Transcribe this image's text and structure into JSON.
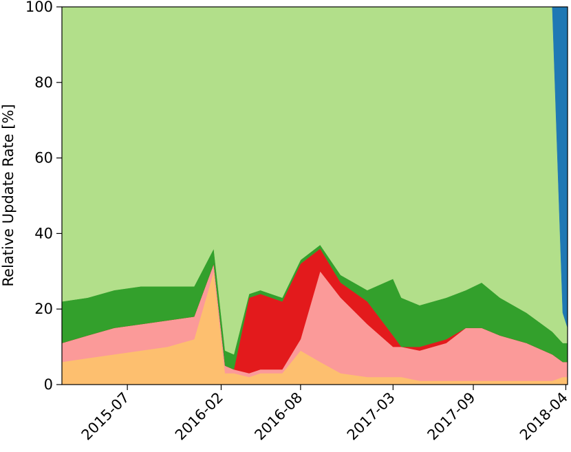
{
  "chart_data": {
    "type": "area",
    "stacked": true,
    "normalized_percent": true,
    "title": "",
    "xlabel": "",
    "ylabel": "Relative Update Rate [%]",
    "ylim": [
      0,
      100
    ],
    "xlim": [
      "2015-02-01",
      "2018-04-05"
    ],
    "y_ticks": [
      "0",
      "20",
      "40",
      "60",
      "80",
      "100"
    ],
    "x_ticks": [
      "2015-07",
      "2016-02",
      "2016-08",
      "2017-03",
      "2017-09",
      "2018-04"
    ],
    "x_tick_dates": [
      "2015-07-01",
      "2016-02-01",
      "2016-08-01",
      "2017-03-01",
      "2017-09-01",
      "2018-04-01"
    ],
    "grid": false,
    "legend": "none",
    "x": [
      "2015-02-01",
      "2015-04-01",
      "2015-06-01",
      "2015-08-01",
      "2015-10-01",
      "2015-12-01",
      "2016-01-15",
      "2016-02-10",
      "2016-03-01",
      "2016-04-05",
      "2016-05-01",
      "2016-06-20",
      "2016-08-01",
      "2016-09-15",
      "2016-11-01",
      "2017-01-01",
      "2017-03-01",
      "2017-03-20",
      "2017-05-01",
      "2017-07-01",
      "2017-08-15",
      "2017-09-20",
      "2017-11-01",
      "2018-01-01",
      "2018-03-01",
      "2018-03-25",
      "2018-04-05"
    ],
    "series": [
      {
        "color": "#fdbf6f",
        "values": [
          6,
          7,
          8,
          9,
          10,
          12,
          30,
          3,
          3,
          2,
          3,
          3,
          9,
          6,
          3,
          2,
          2,
          2,
          1,
          1,
          1,
          1,
          1,
          1,
          1,
          2,
          2
        ]
      },
      {
        "color": "#fb9a99",
        "values": [
          5,
          6,
          7,
          7,
          7,
          6,
          2,
          2,
          1,
          1,
          1,
          1,
          3,
          24,
          20,
          14,
          8,
          8,
          8,
          10,
          14,
          14,
          12,
          10,
          7,
          4,
          4
        ]
      },
      {
        "color": "#e31a1c",
        "values": [
          0,
          0,
          0,
          0,
          0,
          0,
          0,
          0,
          0,
          20,
          20,
          18,
          20,
          6,
          4,
          6,
          3,
          0,
          1,
          1,
          0,
          0,
          0,
          0,
          0,
          0,
          0
        ]
      },
      {
        "color": "#33a02c",
        "values": [
          11,
          10,
          10,
          10,
          9,
          8,
          4,
          4,
          4,
          1,
          1,
          1,
          1,
          1,
          2,
          3,
          15,
          13,
          11,
          11,
          10,
          12,
          10,
          8,
          6,
          5,
          5
        ]
      },
      {
        "color": "#b2df8a",
        "values": [
          78,
          77,
          75,
          74,
          74,
          74,
          64,
          91,
          92,
          76,
          75,
          77,
          67,
          63,
          71,
          75,
          72,
          77,
          79,
          77,
          75,
          73,
          77,
          81,
          86,
          8,
          4
        ]
      },
      {
        "color": "#1f78b4",
        "values": [
          0,
          0,
          0,
          0,
          0,
          0,
          0,
          0,
          0,
          0,
          0,
          0,
          0,
          0,
          0,
          0,
          0,
          0,
          0,
          0,
          0,
          0,
          0,
          0,
          0,
          81,
          85
        ]
      }
    ]
  }
}
